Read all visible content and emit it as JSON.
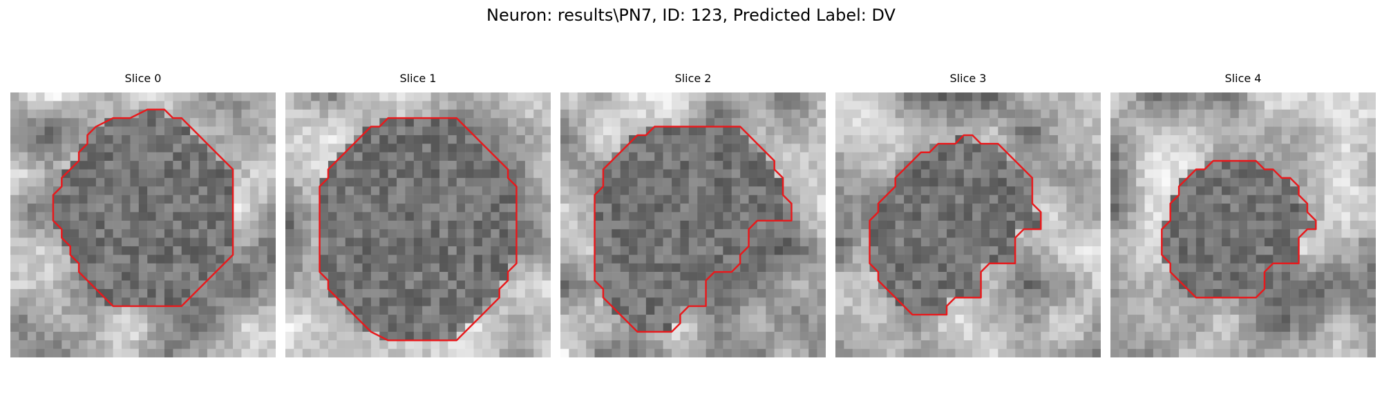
{
  "figure": {
    "title": "Neuron: results\\PN7, ID: 123, Predicted Label: DV"
  },
  "colors": {
    "contour": "#e8191c",
    "background": "#ffffff"
  },
  "image": {
    "colormap": "grayscale",
    "grid_cells": 31
  },
  "panels": [
    {
      "title": "Slice 0",
      "contour": [
        [
          16,
          2
        ],
        [
          14,
          3
        ],
        [
          12,
          3
        ],
        [
          10,
          4
        ],
        [
          9,
          5
        ],
        [
          9,
          6
        ],
        [
          8,
          7
        ],
        [
          8,
          8
        ],
        [
          7,
          9
        ],
        [
          6,
          10
        ],
        [
          6,
          11
        ],
        [
          5,
          12
        ],
        [
          5,
          13
        ],
        [
          5,
          14
        ],
        [
          5,
          15
        ],
        [
          6,
          16
        ],
        [
          6,
          17
        ],
        [
          7,
          18
        ],
        [
          7,
          19
        ],
        [
          8,
          20
        ],
        [
          8,
          21
        ],
        [
          9,
          22
        ],
        [
          10,
          23
        ],
        [
          11,
          24
        ],
        [
          12,
          25
        ],
        [
          16,
          25
        ],
        [
          20,
          25
        ],
        [
          21,
          24
        ],
        [
          22,
          23
        ],
        [
          23,
          22
        ],
        [
          24,
          21
        ],
        [
          25,
          20
        ],
        [
          26,
          19
        ],
        [
          26,
          17
        ],
        [
          26,
          15
        ],
        [
          26,
          13
        ],
        [
          26,
          11
        ],
        [
          26,
          9
        ],
        [
          25,
          8
        ],
        [
          24,
          7
        ],
        [
          23,
          6
        ],
        [
          22,
          5
        ],
        [
          21,
          4
        ],
        [
          20,
          3
        ],
        [
          19,
          3
        ],
        [
          18,
          2
        ]
      ]
    },
    {
      "title": "Slice 1",
      "contour": [
        [
          16,
          3
        ],
        [
          12,
          3
        ],
        [
          12,
          3
        ],
        [
          11,
          4
        ],
        [
          10,
          4
        ],
        [
          9,
          5
        ],
        [
          8,
          6
        ],
        [
          7,
          7
        ],
        [
          6,
          8
        ],
        [
          5,
          9
        ],
        [
          5,
          10
        ],
        [
          4,
          11
        ],
        [
          4,
          12
        ],
        [
          4,
          13
        ],
        [
          4,
          15
        ],
        [
          4,
          17
        ],
        [
          4,
          19
        ],
        [
          4,
          20
        ],
        [
          4,
          21
        ],
        [
          5,
          22
        ],
        [
          5,
          23
        ],
        [
          6,
          24
        ],
        [
          7,
          25
        ],
        [
          8,
          26
        ],
        [
          9,
          27
        ],
        [
          10,
          28
        ],
        [
          12,
          29
        ],
        [
          16,
          29
        ],
        [
          20,
          29
        ],
        [
          21,
          28
        ],
        [
          22,
          27
        ],
        [
          23,
          26
        ],
        [
          24,
          25
        ],
        [
          25,
          24
        ],
        [
          25,
          23
        ],
        [
          26,
          22
        ],
        [
          26,
          21
        ],
        [
          27,
          20
        ],
        [
          27,
          19
        ],
        [
          27,
          17
        ],
        [
          27,
          15
        ],
        [
          27,
          13
        ],
        [
          27,
          11
        ],
        [
          26,
          10
        ],
        [
          26,
          9
        ],
        [
          25,
          8
        ],
        [
          24,
          7
        ],
        [
          23,
          6
        ],
        [
          22,
          5
        ],
        [
          21,
          4
        ],
        [
          20,
          3
        ],
        [
          19,
          3
        ]
      ]
    },
    {
      "title": "Slice 2",
      "contour": [
        [
          11,
          4
        ],
        [
          10,
          5
        ],
        [
          9,
          5
        ],
        [
          8,
          6
        ],
        [
          7,
          7
        ],
        [
          6,
          8
        ],
        [
          5,
          9
        ],
        [
          5,
          11
        ],
        [
          4,
          12
        ],
        [
          4,
          14
        ],
        [
          4,
          16
        ],
        [
          4,
          18
        ],
        [
          4,
          20
        ],
        [
          4,
          22
        ],
        [
          5,
          23
        ],
        [
          5,
          24
        ],
        [
          6,
          25
        ],
        [
          7,
          26
        ],
        [
          8,
          27
        ],
        [
          9,
          28
        ],
        [
          11,
          28
        ],
        [
          13,
          28
        ],
        [
          14,
          27
        ],
        [
          14,
          26
        ],
        [
          15,
          25
        ],
        [
          17,
          25
        ],
        [
          17,
          24
        ],
        [
          17,
          23
        ],
        [
          17,
          22
        ],
        [
          18,
          21
        ],
        [
          20,
          21
        ],
        [
          21,
          20
        ],
        [
          21,
          19
        ],
        [
          22,
          18
        ],
        [
          22,
          17
        ],
        [
          22,
          16
        ],
        [
          23,
          15
        ],
        [
          24,
          15
        ],
        [
          25,
          15
        ],
        [
          27,
          15
        ],
        [
          27,
          14
        ],
        [
          27,
          13
        ],
        [
          26,
          12
        ],
        [
          26,
          11
        ],
        [
          26,
          10
        ],
        [
          25,
          9
        ],
        [
          25,
          8
        ],
        [
          24,
          7
        ],
        [
          23,
          6
        ],
        [
          22,
          5
        ],
        [
          21,
          4
        ],
        [
          20,
          4
        ],
        [
          17,
          4
        ],
        [
          14,
          4
        ],
        [
          12,
          4
        ]
      ]
    },
    {
      "title": "Slice 3",
      "contour": [
        [
          15,
          5
        ],
        [
          14,
          6
        ],
        [
          13,
          6
        ],
        [
          12,
          6
        ],
        [
          11,
          7
        ],
        [
          10,
          7
        ],
        [
          9,
          8
        ],
        [
          8,
          9
        ],
        [
          7,
          10
        ],
        [
          7,
          11
        ],
        [
          6,
          12
        ],
        [
          5,
          13
        ],
        [
          5,
          14
        ],
        [
          4,
          15
        ],
        [
          4,
          16
        ],
        [
          4,
          18
        ],
        [
          4,
          20
        ],
        [
          5,
          21
        ],
        [
          5,
          22
        ],
        [
          6,
          23
        ],
        [
          7,
          24
        ],
        [
          8,
          25
        ],
        [
          9,
          26
        ],
        [
          11,
          26
        ],
        [
          13,
          26
        ],
        [
          13,
          25
        ],
        [
          14,
          24
        ],
        [
          16,
          24
        ],
        [
          17,
          24
        ],
        [
          17,
          23
        ],
        [
          17,
          22
        ],
        [
          17,
          21
        ],
        [
          18,
          20
        ],
        [
          20,
          20
        ],
        [
          21,
          20
        ],
        [
          21,
          19
        ],
        [
          21,
          18
        ],
        [
          21,
          17
        ],
        [
          22,
          16
        ],
        [
          24,
          16
        ],
        [
          24,
          15
        ],
        [
          24,
          14
        ],
        [
          23,
          13
        ],
        [
          23,
          12
        ],
        [
          23,
          11
        ],
        [
          23,
          10
        ],
        [
          22,
          9
        ],
        [
          21,
          8
        ],
        [
          20,
          7
        ],
        [
          19,
          6
        ],
        [
          18,
          6
        ],
        [
          17,
          6
        ],
        [
          16,
          5
        ]
      ]
    },
    {
      "title": "Slice 4",
      "contour": [
        [
          14,
          8
        ],
        [
          13,
          8
        ],
        [
          12,
          8
        ],
        [
          11,
          9
        ],
        [
          10,
          9
        ],
        [
          9,
          10
        ],
        [
          8,
          11
        ],
        [
          8,
          12
        ],
        [
          7,
          13
        ],
        [
          7,
          14
        ],
        [
          7,
          15
        ],
        [
          6,
          16
        ],
        [
          6,
          17
        ],
        [
          6,
          18
        ],
        [
          6,
          19
        ],
        [
          7,
          20
        ],
        [
          7,
          21
        ],
        [
          8,
          22
        ],
        [
          9,
          23
        ],
        [
          10,
          24
        ],
        [
          11,
          24
        ],
        [
          12,
          24
        ],
        [
          14,
          24
        ],
        [
          16,
          24
        ],
        [
          17,
          24
        ],
        [
          18,
          23
        ],
        [
          18,
          22
        ],
        [
          18,
          21
        ],
        [
          19,
          20
        ],
        [
          21,
          20
        ],
        [
          22,
          20
        ],
        [
          22,
          19
        ],
        [
          22,
          18
        ],
        [
          22,
          17
        ],
        [
          23,
          16
        ],
        [
          24,
          16
        ],
        [
          24,
          15
        ],
        [
          23,
          14
        ],
        [
          23,
          13
        ],
        [
          22,
          12
        ],
        [
          22,
          11
        ],
        [
          21,
          10
        ],
        [
          20,
          10
        ],
        [
          19,
          9
        ],
        [
          18,
          9
        ],
        [
          17,
          8
        ],
        [
          16,
          8
        ],
        [
          15,
          8
        ]
      ]
    }
  ]
}
